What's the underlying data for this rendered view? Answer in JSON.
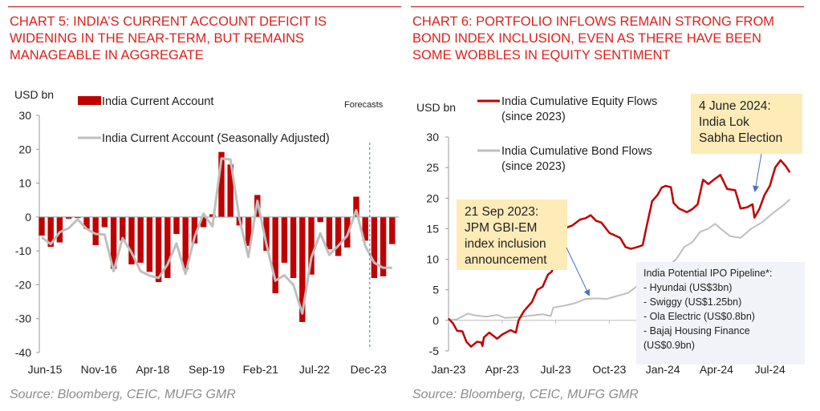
{
  "left": {
    "title_lines": [
      "CHART 5: INDIA’S CURRENT ACCOUNT DEFICIT IS",
      "WIDENING IN THE NEAR-TERM, BUT REMAINS",
      "MANAGEABLE IN AGGREGATE"
    ],
    "source": "Source: Bloomberg, CEIC, MUFG GMR"
  },
  "right": {
    "title_lines": [
      "CHART 6: PORTFOLIO INFLOWS REMAIN STRONG FROM",
      "BOND INDEX INCLUSION, EVEN AS THERE HAVE BEEN",
      "SOME WOBBLES IN EQUITY SENTIMENT"
    ],
    "source": "Source: Bloomberg, CEIC, MUFG GMR"
  },
  "colors": {
    "title": "#e0201b",
    "red": "#c00000",
    "gray": "#bfbfbf",
    "note": "#fdebb8",
    "arrow": "#4472c4"
  },
  "chart_data": [
    {
      "type": "bar",
      "ylabel": "USD bn",
      "ylim": [
        -40,
        30
      ],
      "yticks": [
        30,
        20,
        10,
        0,
        -10,
        -20,
        -30,
        -40
      ],
      "xticklabels": [
        "Jun-15",
        "Nov-16",
        "Apr-18",
        "Sep-19",
        "Feb-21",
        "Jul-22",
        "Dec-23"
      ],
      "annotation": "Forecasts",
      "forecast_after_index": 36,
      "series": [
        {
          "name": "India Current Account",
          "type": "bar",
          "values": [
            -5.5,
            -8.8,
            -7.5,
            -0.5,
            -0.3,
            -3.5,
            -8.3,
            -3,
            -15.3,
            -7,
            -14,
            -13.5,
            -16.2,
            -19.2,
            -18,
            -5,
            -15.5,
            -7.8,
            -3,
            0.8,
            19.2,
            15.5,
            -2.5,
            -8.5,
            6.5,
            -10,
            -22.5,
            -13.5,
            -18,
            -31,
            -17,
            -1.5,
            -9.5,
            -11.5,
            -9,
            6,
            -7,
            -18,
            -17.5,
            -8
          ]
        },
        {
          "name": "India Current Account (Seasonally Adjusted)",
          "type": "line",
          "values": [
            -6,
            -8,
            -4.5,
            -3.3,
            -0.7,
            -3.5,
            -5,
            -5.2,
            -16,
            -6.2,
            -10.5,
            -16,
            -17.3,
            -18,
            -14,
            -7.8,
            -16.8,
            -6,
            1,
            -2.8,
            17.3,
            17,
            -0.5,
            -11.8,
            4.8,
            -8,
            -18.8,
            -17.2,
            -20,
            -28.5,
            -12,
            -4.8,
            -11.2,
            -8.5,
            -5.5,
            2,
            -8.5,
            -13.5,
            -15,
            -15
          ]
        }
      ]
    },
    {
      "type": "line",
      "ylabel": "USD bn",
      "ylim": [
        -5,
        30
      ],
      "yticks": [
        30,
        25,
        20,
        15,
        10,
        5,
        0,
        -5
      ],
      "xticklabels": [
        "Jan-23",
        "Apr-23",
        "Jul-23",
        "Oct-23",
        "Jan-24",
        "Apr-24",
        "Jul-24"
      ],
      "x_unit": "months since Jan-23",
      "series": [
        {
          "name_lines": [
            "India Cumulative Equity Flows",
            "(since 2023)"
          ],
          "x": [
            0,
            0.25,
            0.48,
            0.78,
            1.0,
            1.26,
            1.6,
            1.83,
            1.9,
            1.98,
            2.28,
            2.72,
            3.02,
            3.47,
            3.77,
            3.92,
            4.22,
            4.67,
            4.97,
            5.27,
            5.57,
            5.79,
            5.94,
            6.09,
            6.39,
            6.62,
            6.92,
            7.37,
            7.66,
            7.96,
            8.26,
            8.56,
            9.01,
            9.61,
            9.91,
            10.21,
            10.58,
            10.87,
            11.1,
            11.4,
            11.7,
            11.93,
            12.15,
            12.45,
            12.6,
            12.9,
            13.35,
            13.65,
            13.95,
            14.25,
            14.55,
            14.85,
            15.22,
            15.6,
            16.05,
            16.35,
            16.72,
            17.02,
            17.13,
            17.4,
            17.69,
            17.99,
            18.29,
            18.59,
            18.89,
            19.11
          ],
          "values": [
            0.3,
            -0.5,
            -1.7,
            -1.8,
            -3.5,
            -4.3,
            -3.5,
            -3.6,
            -4.2,
            -2.8,
            -2,
            -3,
            -2.3,
            -1.6,
            -2,
            0,
            1.5,
            3,
            5,
            5.5,
            7.5,
            8,
            11,
            12.7,
            13.5,
            15.2,
            15.5,
            16.5,
            16.7,
            17.2,
            16.3,
            16,
            14.3,
            13.5,
            12,
            11.7,
            12,
            12.3,
            15.5,
            19.5,
            20.5,
            21.7,
            22,
            21.8,
            19.2,
            18.3,
            17.7,
            18.2,
            19,
            23,
            22.3,
            23,
            23.8,
            21.5,
            21.3,
            18.3,
            18.5,
            19,
            16.8,
            18.2,
            20.5,
            22,
            25,
            26.2,
            25.2,
            24.2
          ]
        },
        {
          "name_lines": [
            "India Cumulative Bond Flows",
            "(since 2023)"
          ],
          "x": [
            0,
            0.48,
            1.08,
            1.53,
            2.13,
            2.72,
            3.17,
            3.92,
            4.67,
            5.27,
            5.72,
            5.87,
            6.47,
            7.07,
            7.66,
            8.26,
            8.86,
            9.46,
            10.06,
            10.51,
            10.96,
            11.56,
            12.15,
            12.75,
            13.2,
            13.65,
            14.1,
            14.55,
            14.93,
            15.15,
            15.75,
            16.35,
            16.95,
            17.54,
            18.14,
            18.74,
            19.11
          ],
          "values": [
            0,
            0.2,
            1.1,
            0.8,
            0.6,
            0.9,
            0.4,
            0.5,
            0.8,
            1,
            0.7,
            2.1,
            2.4,
            2.8,
            3.5,
            3.6,
            3.5,
            4,
            4.5,
            5.5,
            6,
            7,
            8.5,
            10,
            12,
            12.8,
            14.5,
            15,
            15.8,
            15.2,
            13.8,
            13.5,
            15,
            16,
            17.5,
            18.8,
            19.8
          ]
        }
      ],
      "annotations": [
        {
          "lines": [
            "21 Sep 2023:",
            "JPM GBI-EM",
            "index inclusion",
            "announcement"
          ]
        },
        {
          "lines": [
            "4 June 2024:",
            "India Lok",
            "Sabha Election"
          ]
        }
      ],
      "ipo_box": {
        "title": "India Potential IPO Pipeline*:",
        "items": [
          "- Hyundai (US$3bn)",
          "- Swiggy (US$1.25bn)",
          "- Ola Electric (US$0.8bn)",
          "- Bajaj Housing Finance",
          "(US$0.9bn)"
        ]
      }
    }
  ]
}
